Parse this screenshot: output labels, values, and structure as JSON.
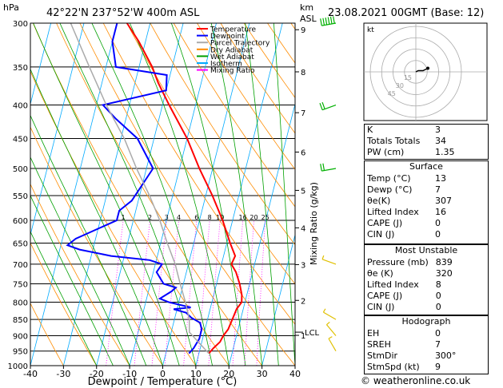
{
  "header": {
    "hpa_label": "hPa",
    "location": "42°22'N  237°52'W  400m  ASL",
    "km_label": "km",
    "asl_label": "ASL",
    "datetime": "23.08.2021  00GMT  (Base: 12)"
  },
  "legend": {
    "items": [
      {
        "label": "Temperature",
        "color": "#ff0000"
      },
      {
        "label": "Dewpoint",
        "color": "#0000ff"
      },
      {
        "label": "Parcel Trajectory",
        "color": "#aaaaaa"
      },
      {
        "label": "Dry Adiabat",
        "color": "#ff8c00"
      },
      {
        "label": "Wet Adiabat",
        "color": "#00a000"
      },
      {
        "label": "Isotherm",
        "color": "#00aaff"
      },
      {
        "label": "Mixing Ratio",
        "color": "#ff00ff"
      }
    ]
  },
  "chart_data": {
    "type": "line",
    "title": "",
    "xlabel": "Dewpoint / Temperature (°C)",
    "ylabel": "hPa",
    "y2label": "Mixing Ratio (g/kg)",
    "xlim": [
      -40,
      40
    ],
    "ylim": [
      1000,
      300
    ],
    "x_ticks": [
      "-40",
      "-30",
      "-20",
      "-10",
      "0",
      "10",
      "20",
      "30",
      "40"
    ],
    "pressure_ticks": [
      "300",
      "350",
      "400",
      "450",
      "500",
      "550",
      "600",
      "650",
      "700",
      "750",
      "800",
      "850",
      "900",
      "950",
      "1000"
    ],
    "km_ticks": [
      {
        "km": "9",
        "p": 307
      },
      {
        "km": "8",
        "p": 356
      },
      {
        "km": "7",
        "p": 411
      },
      {
        "km": "6",
        "p": 472
      },
      {
        "km": "5",
        "p": 540
      },
      {
        "km": "4",
        "p": 616
      },
      {
        "km": "3",
        "p": 701
      },
      {
        "km": "2",
        "p": 795
      },
      {
        "km": "1",
        "p": 899
      }
    ],
    "lcl": {
      "label": "LCL",
      "p": 889
    },
    "mixing_ratio_labels": [
      "1",
      "2",
      "3",
      "4",
      "6",
      "8",
      "10",
      "16",
      "20",
      "25"
    ],
    "mixing_ratio_label_p": 600,
    "series": [
      {
        "name": "Temperature",
        "color": "#ff0000",
        "points": [
          [
            958,
            13
          ],
          [
            940,
            14
          ],
          [
            920,
            15.5
          ],
          [
            900,
            16
          ],
          [
            880,
            17
          ],
          [
            850,
            17.5
          ],
          [
            820,
            18
          ],
          [
            800,
            19
          ],
          [
            780,
            18.5
          ],
          [
            750,
            17
          ],
          [
            720,
            15
          ],
          [
            700,
            13
          ],
          [
            680,
            13.5
          ],
          [
            650,
            11
          ],
          [
            600,
            7
          ],
          [
            550,
            2
          ],
          [
            500,
            -4
          ],
          [
            450,
            -10
          ],
          [
            400,
            -18
          ],
          [
            370,
            -23
          ],
          [
            350,
            -26
          ],
          [
            320,
            -32
          ],
          [
            300,
            -37
          ]
        ]
      },
      {
        "name": "Dewpoint",
        "color": "#0000ff",
        "points": [
          [
            958,
            7
          ],
          [
            940,
            8
          ],
          [
            910,
            9
          ],
          [
            880,
            9
          ],
          [
            860,
            8
          ],
          [
            845,
            5
          ],
          [
            830,
            3
          ],
          [
            820,
            -1
          ],
          [
            815,
            4
          ],
          [
            800,
            -3
          ],
          [
            790,
            -6
          ],
          [
            770,
            -3
          ],
          [
            760,
            -2
          ],
          [
            750,
            -6
          ],
          [
            720,
            -9
          ],
          [
            700,
            -8
          ],
          [
            690,
            -12
          ],
          [
            680,
            -24
          ],
          [
            665,
            -34
          ],
          [
            655,
            -38
          ],
          [
            640,
            -36
          ],
          [
            600,
            -25
          ],
          [
            580,
            -25
          ],
          [
            560,
            -22
          ],
          [
            500,
            -18
          ],
          [
            450,
            -25
          ],
          [
            420,
            -33
          ],
          [
            400,
            -38
          ],
          [
            380,
            -20
          ],
          [
            360,
            -21
          ],
          [
            350,
            -37
          ],
          [
            320,
            -40
          ],
          [
            300,
            -40
          ]
        ]
      },
      {
        "name": "Parcel Trajectory",
        "color": "#aaaaaa",
        "points": [
          [
            958,
            13
          ],
          [
            889,
            5.5
          ],
          [
            850,
            4.5
          ],
          [
            800,
            2
          ],
          [
            750,
            -1
          ],
          [
            700,
            -4
          ],
          [
            650,
            -8
          ],
          [
            600,
            -12
          ],
          [
            550,
            -17
          ],
          [
            500,
            -23
          ],
          [
            450,
            -29
          ],
          [
            400,
            -37
          ],
          [
            350,
            -45
          ],
          [
            300,
            -54
          ]
        ]
      }
    ]
  },
  "wind_barbs": [
    {
      "p": 300,
      "dir": 260,
      "spd": 55
    },
    {
      "p": 400,
      "dir": 250,
      "spd": 20
    },
    {
      "p": 500,
      "dir": 260,
      "spd": 20
    },
    {
      "p": 700,
      "dir": 290,
      "spd": 5
    },
    {
      "p": 850,
      "dir": 300,
      "spd": 5
    },
    {
      "p": 900,
      "dir": 320,
      "spd": 5
    },
    {
      "p": 950,
      "dir": 330,
      "spd": 5
    }
  ],
  "hodograph": {
    "label": "kt",
    "ring_labels": [
      "45",
      "30",
      "15"
    ],
    "trace": [
      [
        0,
        0
      ],
      [
        2,
        1
      ],
      [
        4,
        1
      ],
      [
        6,
        1
      ],
      [
        8,
        2
      ],
      [
        10,
        3
      ]
    ]
  },
  "indices": {
    "top": [
      {
        "label": "K",
        "value": "3"
      },
      {
        "label": "Totals Totals",
        "value": "34"
      },
      {
        "label": "PW (cm)",
        "value": "1.35"
      }
    ],
    "surface": {
      "title": "Surface",
      "rows": [
        {
          "label": "Temp (°C)",
          "value": "13"
        },
        {
          "label": "Dewp (°C)",
          "value": "7"
        },
        {
          "label": "θe(K)",
          "value": "307"
        },
        {
          "label": "Lifted Index",
          "value": "16"
        },
        {
          "label": "CAPE (J)",
          "value": "0"
        },
        {
          "label": "CIN (J)",
          "value": "0"
        }
      ]
    },
    "most_unstable": {
      "title": "Most Unstable",
      "rows": [
        {
          "label": "Pressure (mb)",
          "value": "839"
        },
        {
          "label": "θe (K)",
          "value": "320"
        },
        {
          "label": "Lifted Index",
          "value": "8"
        },
        {
          "label": "CAPE (J)",
          "value": "0"
        },
        {
          "label": "CIN (J)",
          "value": "0"
        }
      ]
    },
    "hodograph_table": {
      "title": "Hodograph",
      "rows": [
        {
          "label": "EH",
          "value": "0"
        },
        {
          "label": "SREH",
          "value": "7"
        },
        {
          "label": "StmDir",
          "value": "300°"
        },
        {
          "label": "StmSpd (kt)",
          "value": "9"
        }
      ]
    }
  },
  "footer": {
    "copyright": "© weatheronline.co.uk"
  }
}
